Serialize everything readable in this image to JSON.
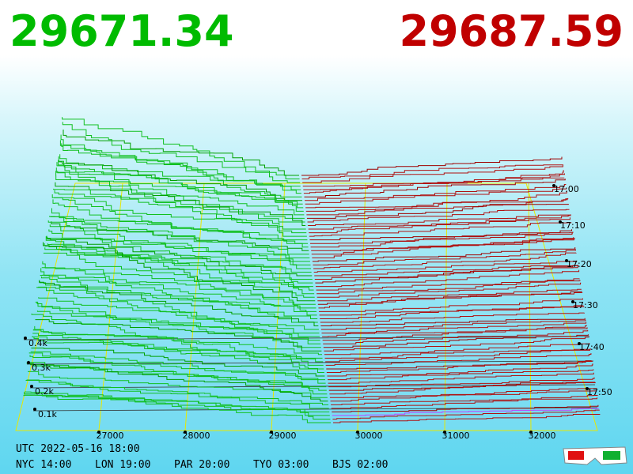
{
  "bid_price": "29671.34",
  "ask_price": "29687.59",
  "price_labels": [
    "27000",
    "28000",
    "29000",
    "30000",
    "31000",
    "32000"
  ],
  "depth_labels": [
    "0.4k",
    "0.3k",
    "0.2k",
    "0.1k"
  ],
  "time_labels": [
    "17:00",
    "17:10",
    "17:20",
    "17:30",
    "17:40",
    "17:50"
  ],
  "footer": {
    "utc": "UTC 2022-05-16 18:00",
    "clocks": [
      "NYC 14:00",
      "LON 19:00",
      "PAR 20:00",
      "TYO 03:00",
      "BJS 02:00"
    ]
  }
}
